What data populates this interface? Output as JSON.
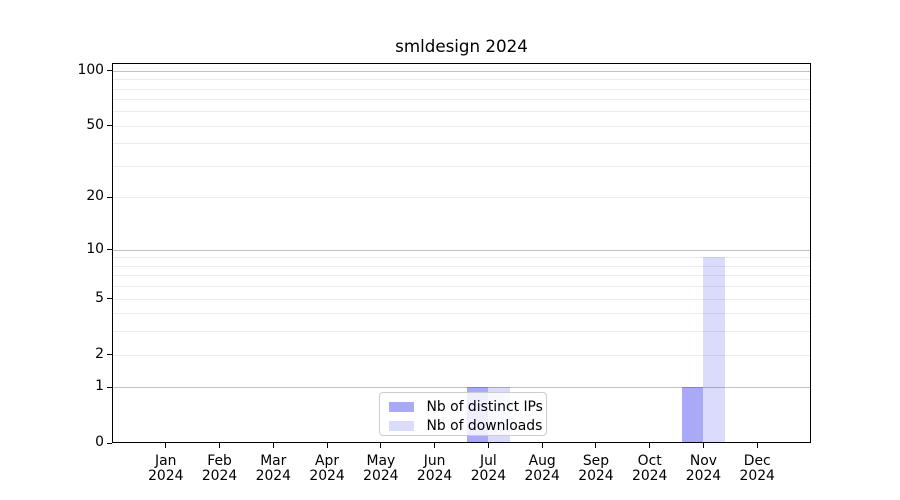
{
  "chart_data": {
    "type": "bar",
    "title": "smldesign 2024",
    "categories": [
      "Jan",
      "Feb",
      "Mar",
      "Apr",
      "May",
      "Jun",
      "Jul",
      "Aug",
      "Sep",
      "Oct",
      "Nov",
      "Dec"
    ],
    "x_year": "2024",
    "series": [
      {
        "name": "Nb of distinct IPs",
        "color": "rgba(10,10,235,0.35)",
        "values": [
          0,
          0,
          0,
          0,
          0,
          0,
          1,
          0,
          0,
          0,
          1,
          0
        ]
      },
      {
        "name": "Nb of downloads",
        "color": "rgba(10,10,235,0.145)",
        "values": [
          0,
          0,
          0,
          0,
          0,
          0,
          1,
          0,
          0,
          0,
          9,
          0
        ]
      }
    ],
    "y_scale": "log10(1+value)",
    "ylim": [
      0,
      111
    ],
    "y_ticks": [
      100,
      50,
      20,
      10,
      5,
      2,
      1,
      0
    ],
    "y_major_gridlines": [
      1,
      10,
      100
    ],
    "y_minor_gridlines": [
      2,
      3,
      4,
      5,
      6,
      7,
      8,
      9,
      20,
      30,
      40,
      50,
      60,
      70,
      80,
      90
    ],
    "grid": true,
    "legend_position": "lower center",
    "colors": {
      "major_gridline": "#c2c2c2",
      "minor_gridline": "#ebebeb",
      "spine": "#000000",
      "background": "#ffffff",
      "legend_border": "#cccccc"
    }
  }
}
